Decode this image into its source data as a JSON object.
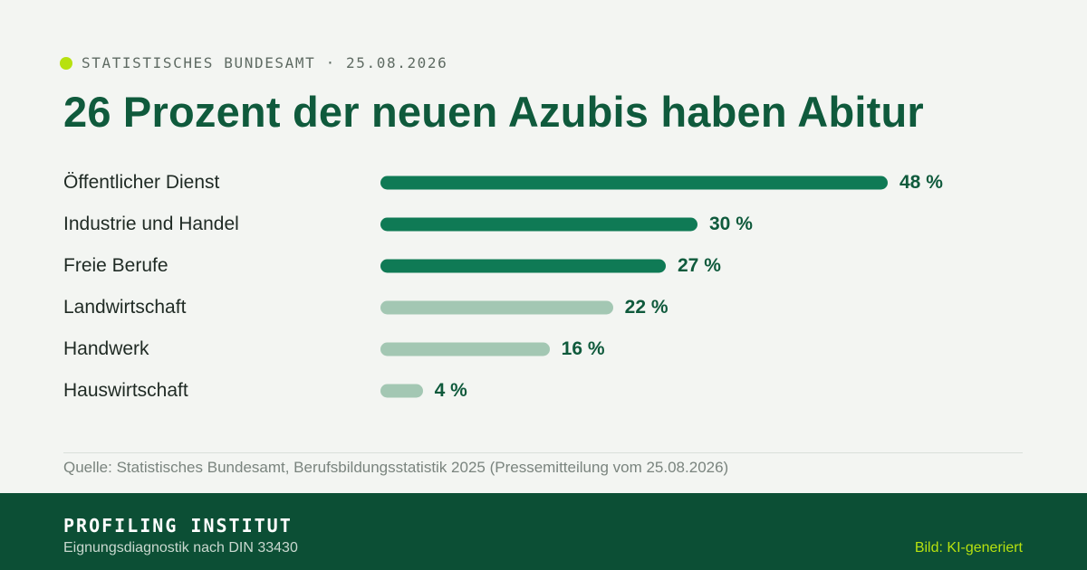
{
  "header": {
    "source_line": "STATISTISCHES BUNDESAMT · 25.08.2026",
    "title": "26 Prozent der neuen Azubis haben Abitur"
  },
  "colors": {
    "accent_dot": "#b7e10f",
    "bar_dark": "#0f7a55",
    "bar_light": "#a3c7b3",
    "title": "#0f5a3c",
    "footer_bg": "#0c4f35"
  },
  "chart_data": {
    "type": "bar",
    "orientation": "horizontal",
    "categories": [
      "Öffentlicher Dienst",
      "Industrie und Handel",
      "Freie Berufe",
      "Landwirtschaft",
      "Handwerk",
      "Hauswirtschaft"
    ],
    "values": [
      48,
      30,
      27,
      22,
      16,
      4
    ],
    "value_labels": [
      "48 %",
      "30 %",
      "27 %",
      "22 %",
      "16 %",
      "4 %"
    ],
    "highlight": [
      true,
      true,
      true,
      false,
      false,
      false
    ],
    "unit": "%",
    "xlim": [
      0,
      48
    ],
    "grid": false,
    "legend": "none"
  },
  "footnote": {
    "source": "Quelle: Statistisches Bundesamt, Berufsbildungsstatistik 2025 (Pressemitteilung vom 25.08.2026)"
  },
  "footer": {
    "brand": "PROFILING INSTITUT",
    "tagline": "Eignungsdiagnostik nach DIN 33430",
    "credit": "Bild: KI-generiert"
  }
}
